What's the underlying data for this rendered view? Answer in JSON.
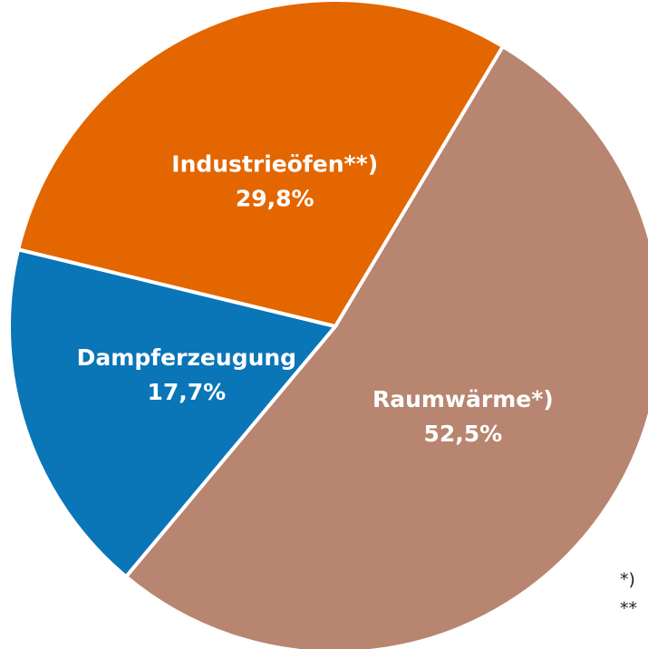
{
  "chart_data": {
    "type": "pie",
    "categories": [
      "Raumwärme*)",
      "Dampferzeugung",
      "Industrieöfen**)"
    ],
    "values": [
      52.5,
      17.7,
      29.8
    ],
    "value_labels": [
      "52,5%",
      "17,7%",
      "29,8%"
    ],
    "colors": [
      "#b88570",
      "#0a75b7",
      "#e36600"
    ],
    "footnotes": [
      "*)",
      "**"
    ]
  }
}
